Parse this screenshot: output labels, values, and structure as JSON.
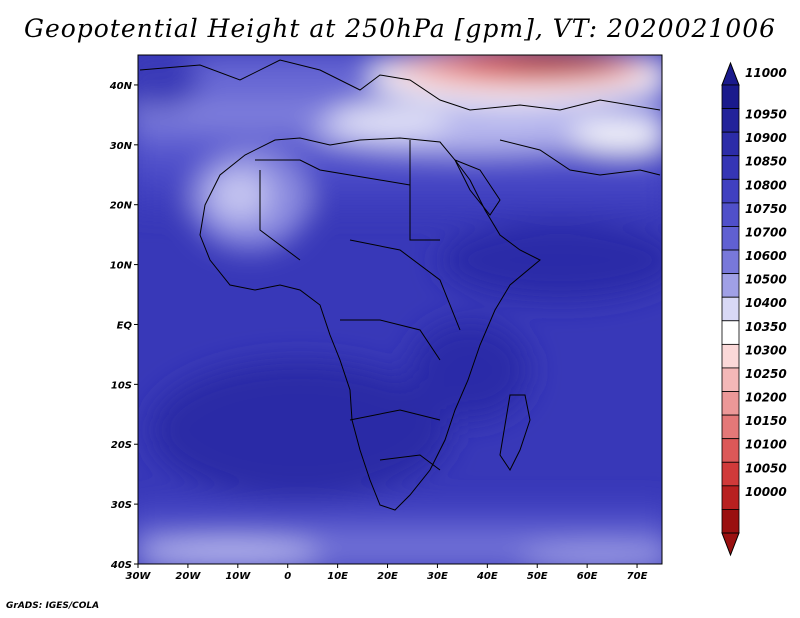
{
  "title": "Geopotential Height at 250hPa [gpm], VT: 2020021006",
  "footer": "GrADS: IGES/COLA",
  "map": {
    "lon_labels": [
      "30W",
      "20W",
      "10W",
      "0",
      "10E",
      "20E",
      "30E",
      "40E",
      "50E",
      "60E",
      "70E"
    ],
    "lat_labels": [
      "40N",
      "30N",
      "20N",
      "10N",
      "EQ",
      "10S",
      "20S",
      "30S",
      "40S"
    ]
  },
  "colorbar": {
    "labels": [
      "11000",
      "10950",
      "10900",
      "10850",
      "10800",
      "10750",
      "10700",
      "10600",
      "10500",
      "10400",
      "10350",
      "10300",
      "10250",
      "10200",
      "10150",
      "10100",
      "10050",
      "10000"
    ],
    "colors": [
      "#1a1a8c",
      "#23239a",
      "#2c2ca8",
      "#3535b5",
      "#4040c0",
      "#5050ca",
      "#6060d2",
      "#7878da",
      "#a0a0e6",
      "#d8d8f6",
      "#ffffff",
      "#fbd8d8",
      "#f4b8b8",
      "#ec9898",
      "#e47878",
      "#dc5858",
      "#d03a3a",
      "#b82020",
      "#9a1010"
    ]
  },
  "chart_data": {
    "type": "heatmap",
    "title": "Geopotential Height at 250hPa [gpm], VT: 2020021006",
    "x_ticks": [
      "30W",
      "20W",
      "10W",
      "0",
      "10E",
      "20E",
      "30E",
      "40E",
      "50E",
      "60E",
      "70E"
    ],
    "y_ticks": [
      "40N",
      "30N",
      "20N",
      "10N",
      "EQ",
      "10S",
      "20S",
      "30S",
      "40S"
    ],
    "xlim": [
      -30,
      75
    ],
    "ylim": [
      -40,
      45
    ],
    "levels": [
      10000,
      10050,
      10100,
      10150,
      10200,
      10250,
      10300,
      10350,
      10400,
      10500,
      10600,
      10700,
      10750,
      10800,
      10850,
      10900,
      10950,
      11000
    ]
  }
}
